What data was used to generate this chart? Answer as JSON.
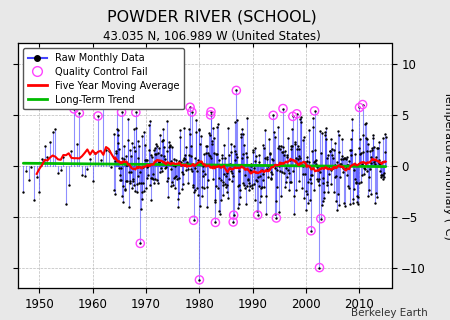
{
  "title": "POWDER RIVER (SCHOOL)",
  "subtitle": "43.035 N, 106.989 W (United States)",
  "ylabel": "Temperature Anomaly (°C)",
  "credit": "Berkeley Earth",
  "xlim": [
    1946,
    2016
  ],
  "ylim": [
    -12,
    12
  ],
  "yticks": [
    -10,
    -5,
    0,
    5,
    10
  ],
  "xticks": [
    1950,
    1960,
    1970,
    1980,
    1990,
    2000,
    2010
  ],
  "line_color": "#4444ff",
  "dot_color": "#000000",
  "ma_color": "#ff0000",
  "trend_color": "#00bb00",
  "qc_color": "#ff44ff",
  "bg_color": "#e8e8e8",
  "plot_bg": "#ffffff",
  "grid_color": "#bbbbbb",
  "seed": 42,
  "start_year": 1947,
  "end_year": 2014,
  "trend_slope": 0.003
}
